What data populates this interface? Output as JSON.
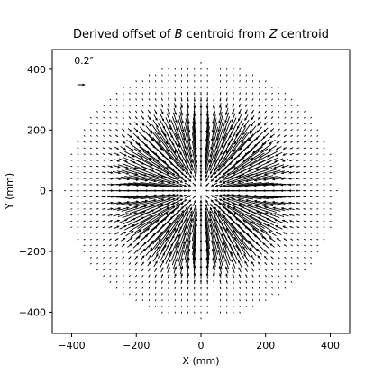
{
  "chart_data": {
    "type": "quiver",
    "title_parts": [
      {
        "text": "Derived offset of ",
        "italic": false
      },
      {
        "text": "B",
        "italic": true
      },
      {
        "text": " centroid from ",
        "italic": false
      },
      {
        "text": "Z",
        "italic": true
      },
      {
        "text": " centroid",
        "italic": false
      }
    ],
    "xlabel": "X (mm)",
    "ylabel": "Y (mm)",
    "xlim": [
      -460,
      460
    ],
    "ylim": [
      -470,
      465
    ],
    "xticks": [
      -400,
      -200,
      0,
      200,
      400
    ],
    "yticks": [
      -400,
      -200,
      0,
      200,
      400
    ],
    "xtick_labels": [
      "−400",
      "−200",
      "0",
      "200",
      "400"
    ],
    "ytick_labels": [
      "−400",
      "−200",
      "0",
      "200",
      "400"
    ],
    "grid": false,
    "field": {
      "pattern": "radial-inward",
      "grid_spacing_mm": 20,
      "region_radius_mm": 420,
      "peak_arcsec": 0.8,
      "peak_radius_mm": 150,
      "edge_arcsec": 0.05
    },
    "key": {
      "label": "0.2″",
      "length_arcsec": 0.2,
      "x_mm": -370,
      "y_mm": 370
    },
    "colors": {
      "arrow": "#000000",
      "axes": "#000000"
    }
  }
}
